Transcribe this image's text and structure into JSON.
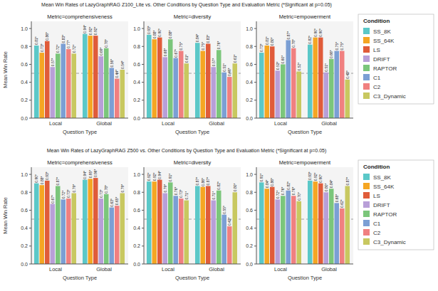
{
  "chart_data": [
    {
      "type": "bar",
      "title": "Mean Win Rates of LazyGraphRAG Z100_Lite vs. Other Conditions by Question Type and Evaluation Metric (*Significant at p=0.05)",
      "legend": "right",
      "legend_title": "Condition",
      "panels": [
        {
          "title": "Metric=comprehensiveness",
          "xlabel": "Question Type",
          "ylabel": "Mean Win Rate",
          "categories": [
            "Local",
            "Global"
          ],
          "ylim": [
            0,
            1.08
          ],
          "yticks": [
            {
              "value": 0,
              "label": "0.0"
            },
            0.2,
            0.4,
            0.6,
            0.8,
            {
              "value": 1,
              "label": "1.0"
            }
          ],
          "grid": false,
          "data_labels": true,
          "reference_line": 0.5,
          "series": [
            {
              "name": "SS_8K",
              "color": "#5BC8C8",
              "values": [
                0.81,
                0.94
              ],
              "value_labels": [
                "0.81*",
                "0.94*"
              ]
            },
            {
              "name": "SS_64K",
              "color": "#F5A623",
              "values": [
                0.73,
                0.92
              ],
              "value_labels": [
                "0.73*",
                "0.92*"
              ]
            },
            {
              "name": "LS",
              "color": "#E05C3A",
              "values": [
                0.86,
                0.92
              ],
              "value_labels": [
                "0.86*",
                "0.92*"
              ]
            },
            {
              "name": "DRIFT",
              "color": "#B89FD8",
              "values": [
                0.57,
                0.69
              ],
              "value_labels": [
                "0.57*",
                "0.69*"
              ]
            },
            {
              "name": "RAPTOR",
              "color": "#7BC67B",
              "values": [
                0.72,
                0.78
              ],
              "value_labels": [
                "0.72*",
                "0.78*"
              ]
            },
            {
              "name": "C1",
              "color": "#7B9FD4",
              "values": [
                0.83,
                0.56
              ],
              "value_labels": [
                "0.83*",
                "0.56*"
              ]
            },
            {
              "name": "C2",
              "color": "#F08080",
              "values": [
                0.77,
                0.44
              ],
              "value_labels": [
                "0.77*",
                "0.44*"
              ]
            },
            {
              "name": "C3_Dynamic",
              "color": "#C8C860",
              "values": [
                0.72,
                0.54
              ],
              "value_labels": [
                "0.72*",
                "0.54*"
              ]
            }
          ]
        },
        {
          "title": "Metric=diversity",
          "xlabel": "Question Type",
          "categories": [
            "Local",
            "Global"
          ],
          "ylim": [
            0,
            1.08
          ],
          "yticks": [
            {
              "value": 0,
              "label": "0.0"
            },
            0.2,
            0.4,
            0.6,
            0.8,
            {
              "value": 1,
              "label": "1.0"
            }
          ],
          "grid": false,
          "data_labels": true,
          "reference_line": 0.5,
          "series": [
            {
              "name": "SS_8K",
              "color": "#5BC8C8",
              "values": [
                0.93,
                0.84
              ],
              "value_labels": [
                "0.93*",
                "0.84*"
              ]
            },
            {
              "name": "SS_64K",
              "color": "#F5A623",
              "values": [
                0.88,
                0.75
              ],
              "value_labels": [
                "0.88*",
                "0.75*"
              ]
            },
            {
              "name": "LS",
              "color": "#E05C3A",
              "values": [
                0.9,
                0.83
              ],
              "value_labels": [
                "0.90*",
                "0.83*"
              ]
            },
            {
              "name": "DRIFT",
              "color": "#B89FD8",
              "values": [
                0.68,
                0.57
              ],
              "value_labels": [
                "0.68*",
                "0.57*"
              ]
            },
            {
              "name": "RAPTOR",
              "color": "#7BC67B",
              "values": [
                0.88,
                0.76
              ],
              "value_labels": [
                "0.88*",
                "0.76*"
              ]
            },
            {
              "name": "C1",
              "color": "#7B9FD4",
              "values": [
                0.67,
                0.51
              ],
              "value_labels": [
                "0.67*",
                "0.51*"
              ]
            },
            {
              "name": "C2",
              "color": "#F08080",
              "values": [
                0.75,
                0.46
              ],
              "value_labels": [
                "0.75*",
                "0.46*"
              ]
            },
            {
              "name": "C3_Dynamic",
              "color": "#C8C860",
              "values": [
                0.61,
                0.61
              ],
              "value_labels": [
                "0.61*",
                "0.61*"
              ]
            }
          ]
        },
        {
          "title": "Metric=empowerment",
          "xlabel": "Question Type",
          "categories": [
            "Local",
            "Global"
          ],
          "ylim": [
            0,
            1.08
          ],
          "yticks": [
            {
              "value": 0,
              "label": "0.0"
            },
            0.2,
            0.4,
            0.6,
            0.8,
            {
              "value": 1,
              "label": "1.0"
            }
          ],
          "grid": false,
          "data_labels": true,
          "reference_line": 0.5,
          "series": [
            {
              "name": "SS_8K",
              "color": "#5BC8C8",
              "values": [
                0.73,
                0.82
              ],
              "value_labels": [
                "0.73*",
                "0.82*"
              ]
            },
            {
              "name": "SS_64K",
              "color": "#F5A623",
              "values": [
                0.81,
                0.9
              ],
              "value_labels": [
                "0.81*",
                "0.90*"
              ]
            },
            {
              "name": "LS",
              "color": "#E05C3A",
              "values": [
                0.8,
                0.9
              ],
              "value_labels": [
                "0.80*",
                "0.90*"
              ]
            },
            {
              "name": "DRIFT",
              "color": "#B89FD8",
              "values": [
                0.53,
                0.51
              ],
              "value_labels": [
                "0.53*",
                "0.51*"
              ]
            },
            {
              "name": "RAPTOR",
              "color": "#7BC67B",
              "values": [
                0.6,
                0.66
              ],
              "value_labels": [
                "0.60*",
                "0.66*"
              ]
            },
            {
              "name": "C1",
              "color": "#7B9FD4",
              "values": [
                0.87,
                0.75
              ],
              "value_labels": [
                "0.87*",
                "0.75*"
              ]
            },
            {
              "name": "C2",
              "color": "#F08080",
              "values": [
                0.78,
                0.75
              ],
              "value_labels": [
                "0.78*",
                "0.75*"
              ]
            },
            {
              "name": "C3_Dynamic",
              "color": "#C8C860",
              "values": [
                0.52,
                0.43
              ],
              "value_labels": [
                "0.52*",
                "0.43*"
              ]
            }
          ]
        }
      ]
    },
    {
      "type": "bar",
      "title": "Mean Win Rates of LazyGraphRAG Z500 vs. Other Conditions by Question Type and Evaluation Metric (*Significant at p=0.05)",
      "legend": "right",
      "legend_title": "Condition",
      "panels": [
        {
          "title": "Metric=comprehensiveness",
          "xlabel": "Question Type",
          "ylabel": "Mean Win Rate",
          "categories": [
            "Local",
            "Global"
          ],
          "ylim": [
            0,
            1.08
          ],
          "yticks": [
            {
              "value": 0,
              "label": "0.0"
            },
            0.2,
            0.4,
            0.6,
            0.8,
            {
              "value": 1,
              "label": "1.0"
            }
          ],
          "grid": false,
          "data_labels": true,
          "reference_line": 0.5,
          "series": [
            {
              "name": "SS_8K",
              "color": "#5BC8C8",
              "values": [
                0.9,
                0.94
              ],
              "value_labels": [
                "0.90*",
                "0.94*"
              ]
            },
            {
              "name": "SS_64K",
              "color": "#F5A623",
              "values": [
                0.88,
                0.95
              ],
              "value_labels": [
                "0.88*",
                "0.95*"
              ]
            },
            {
              "name": "LS",
              "color": "#E05C3A",
              "values": [
                0.93,
                0.96
              ],
              "value_labels": [
                "0.93*",
                "0.96*"
              ]
            },
            {
              "name": "DRIFT",
              "color": "#B89FD8",
              "values": [
                0.67,
                0.73
              ],
              "value_labels": [
                "0.67*",
                "0.73*"
              ]
            },
            {
              "name": "RAPTOR",
              "color": "#7BC67B",
              "values": [
                0.87,
                0.78
              ],
              "value_labels": [
                "0.87*",
                "0.78*"
              ]
            },
            {
              "name": "C1",
              "color": "#7B9FD4",
              "values": [
                0.72,
                0.63
              ],
              "value_labels": [
                "0.72*",
                "0.63*"
              ]
            },
            {
              "name": "C2",
              "color": "#F08080",
              "values": [
                0.73,
                0.65
              ],
              "value_labels": [
                "0.73*",
                "0.65*"
              ]
            },
            {
              "name": "C3_Dynamic",
              "color": "#C8C860",
              "values": [
                0.79,
                0.79
              ],
              "value_labels": [
                "0.79*",
                "0.79*"
              ]
            }
          ]
        },
        {
          "title": "Metric=diversity",
          "xlabel": "Question Type",
          "categories": [
            "Local",
            "Global"
          ],
          "ylim": [
            0,
            1.08
          ],
          "yticks": [
            {
              "value": 0,
              "label": "0.0"
            },
            0.2,
            0.4,
            0.6,
            0.8,
            {
              "value": 1,
              "label": "1.0"
            }
          ],
          "grid": false,
          "data_labels": true,
          "reference_line": 0.5,
          "series": [
            {
              "name": "SS_8K",
              "color": "#5BC8C8",
              "values": [
                0.92,
                0.87
              ],
              "value_labels": [
                "0.92*",
                "0.87*"
              ]
            },
            {
              "name": "SS_64K",
              "color": "#F5A623",
              "values": [
                0.92,
                0.86
              ],
              "value_labels": [
                "0.92*",
                "0.86*"
              ]
            },
            {
              "name": "LS",
              "color": "#E05C3A",
              "values": [
                0.94,
                0.87
              ],
              "value_labels": [
                "0.94*",
                "0.87*"
              ]
            },
            {
              "name": "DRIFT",
              "color": "#B89FD8",
              "values": [
                0.79,
                0.71
              ],
              "value_labels": [
                "0.79*",
                "0.71*"
              ]
            },
            {
              "name": "RAPTOR",
              "color": "#7BC67B",
              "values": [
                0.91,
                0.82
              ],
              "value_labels": [
                "0.91*",
                "0.82*"
              ]
            },
            {
              "name": "C1",
              "color": "#7B9FD4",
              "values": [
                0.76,
                0.55
              ],
              "value_labels": [
                "0.76*",
                "0.55*"
              ]
            },
            {
              "name": "C2",
              "color": "#F08080",
              "values": [
                0.73,
                0.42
              ],
              "value_labels": [
                "0.73*",
                "0.42*"
              ]
            },
            {
              "name": "C3_Dynamic",
              "color": "#C8C860",
              "values": [
                0.71,
                0.8
              ],
              "value_labels": [
                "0.71*",
                "0.80*"
              ]
            }
          ]
        },
        {
          "title": "Metric=empowerment",
          "xlabel": "Question Type",
          "categories": [
            "Local",
            "Global"
          ],
          "ylim": [
            0,
            1.08
          ],
          "yticks": [
            {
              "value": 0,
              "label": "0.0"
            },
            0.2,
            0.4,
            0.6,
            0.8,
            {
              "value": 1,
              "label": "1.0"
            }
          ],
          "grid": false,
          "data_labels": true,
          "reference_line": 0.5,
          "series": [
            {
              "name": "SS_8K",
              "color": "#5BC8C8",
              "values": [
                0.91,
                0.93
              ],
              "value_labels": [
                "0.91*",
                "0.93*"
              ]
            },
            {
              "name": "SS_64K",
              "color": "#F5A623",
              "values": [
                0.84,
                0.92
              ],
              "value_labels": [
                "0.84*",
                "0.92*"
              ]
            },
            {
              "name": "LS",
              "color": "#E05C3A",
              "values": [
                0.86,
                0.9
              ],
              "value_labels": [
                "0.86*",
                "0.90*"
              ]
            },
            {
              "name": "DRIFT",
              "color": "#B89FD8",
              "values": [
                0.72,
                0.8
              ],
              "value_labels": [
                "0.72*",
                "0.80*"
              ]
            },
            {
              "name": "RAPTOR",
              "color": "#7BC67B",
              "values": [
                0.76,
                0.84
              ],
              "value_labels": [
                "0.76*",
                "0.84*"
              ]
            },
            {
              "name": "C1",
              "color": "#7B9FD4",
              "values": [
                0.82,
                0.68
              ],
              "value_labels": [
                "0.82*",
                "0.68*"
              ]
            },
            {
              "name": "C2",
              "color": "#F08080",
              "values": [
                0.76,
                0.62
              ],
              "value_labels": [
                "0.76*",
                "0.62*"
              ]
            },
            {
              "name": "C3_Dynamic",
              "color": "#C8C860",
              "values": [
                0.7,
                0.87
              ],
              "value_labels": [
                "0.70*",
                "0.87*"
              ]
            }
          ]
        }
      ]
    }
  ]
}
